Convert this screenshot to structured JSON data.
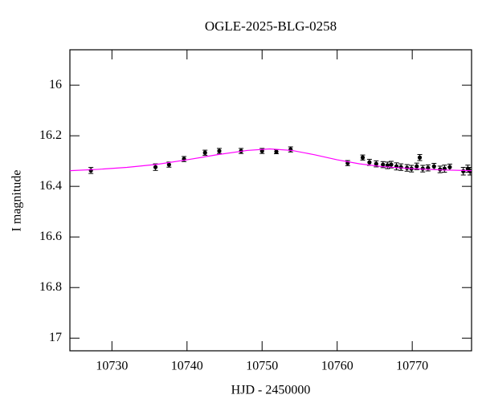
{
  "chart_data": {
    "type": "scatter",
    "title": "OGLE-2025-BLG-0258",
    "xlabel": "HJD - 2450000",
    "ylabel": "I magnitude",
    "xlim": [
      10724.4,
      10777.9
    ],
    "ylim": [
      17.05,
      15.86
    ],
    "xticks": [
      10730,
      10740,
      10750,
      10760,
      10770
    ],
    "yticks": [
      16,
      16.2,
      16.4,
      16.6,
      16.8,
      17
    ],
    "series": [
      {
        "type": "scatter",
        "color": "#000000",
        "x": [
          10727.2,
          10735.8,
          10737.6,
          10739.6,
          10742.4,
          10744.3,
          10747.2,
          10750.0,
          10751.9,
          10753.8,
          10761.4,
          10763.4,
          10764.3,
          10765.2,
          10766.1,
          10766.7,
          10767.2,
          10767.9,
          10768.5,
          10769.3,
          10769.9,
          10770.6,
          10771.0,
          10771.4,
          10772.1,
          10772.9,
          10773.7,
          10774.3,
          10775.0,
          10776.8,
          10777.4,
          10777.7
        ],
        "values": [
          16.337,
          16.324,
          16.314,
          16.292,
          16.267,
          16.26,
          16.26,
          16.26,
          16.263,
          16.254,
          16.308,
          16.286,
          16.305,
          16.311,
          16.314,
          16.317,
          16.314,
          16.321,
          16.324,
          16.327,
          16.33,
          16.321,
          16.286,
          16.33,
          16.327,
          16.321,
          16.333,
          16.33,
          16.324,
          16.34,
          16.33,
          16.34
        ],
        "errors": [
          0.012,
          0.013,
          0.01,
          0.01,
          0.01,
          0.01,
          0.01,
          0.01,
          0.008,
          0.01,
          0.01,
          0.01,
          0.012,
          0.012,
          0.012,
          0.013,
          0.013,
          0.014,
          0.013,
          0.013,
          0.013,
          0.013,
          0.012,
          0.013,
          0.012,
          0.012,
          0.013,
          0.014,
          0.012,
          0.015,
          0.014,
          0.015
        ]
      },
      {
        "type": "line",
        "color": "#ff00ff",
        "x": [
          10724.4,
          10728,
          10732,
          10736,
          10740,
          10744,
          10748,
          10751,
          10754,
          10757,
          10760,
          10763,
          10766,
          10770,
          10774,
          10777.9
        ],
        "values": [
          16.338,
          16.333,
          16.325,
          16.313,
          16.295,
          16.275,
          16.258,
          16.252,
          16.258,
          16.275,
          16.295,
          16.311,
          16.322,
          16.33,
          16.335,
          16.338
        ]
      }
    ]
  }
}
